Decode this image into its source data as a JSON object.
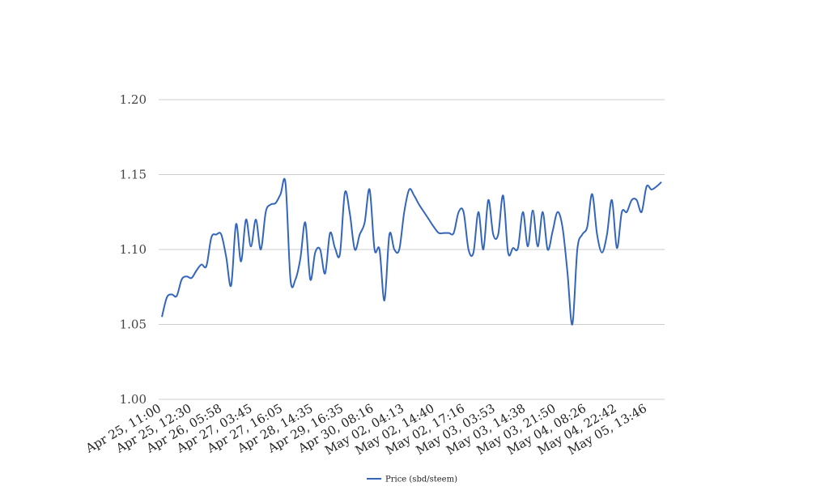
{
  "chart_data": {
    "type": "line",
    "title": "",
    "xlabel": "",
    "ylabel": "",
    "ylim": [
      1.0,
      1.2
    ],
    "grid": true,
    "legend_position": "bottom",
    "colors": {
      "series": "#3366bb",
      "grid": "#cccccc"
    },
    "y_ticks": [
      "1.00",
      "1.05",
      "1.10",
      "1.15",
      "1.20"
    ],
    "x_tick_labels": [
      "Apr 25, 11:00",
      "Apr 25, 12:30",
      "Apr 26, 05:58",
      "Apr 27, 03:45",
      "Apr 27, 16:05",
      "Apr 28, 14:35",
      "Apr 29, 16:35",
      "Apr 30, 08:16",
      "May 02, 04:13",
      "May 02, 14:40",
      "May 02, 17:16",
      "May 03, 03:53",
      "May 03, 14:38",
      "May 03, 21:50",
      "May 04, 08:26",
      "May 04, 22:42",
      "May 05, 13:46"
    ],
    "series": [
      {
        "name": "Price (sbd/steem)",
        "values": [
          1.055,
          1.068,
          1.07,
          1.069,
          1.08,
          1.082,
          1.081,
          1.086,
          1.09,
          1.089,
          1.108,
          1.11,
          1.11,
          1.095,
          1.076,
          1.117,
          1.092,
          1.12,
          1.102,
          1.12,
          1.1,
          1.125,
          1.13,
          1.131,
          1.137,
          1.144,
          1.08,
          1.08,
          1.094,
          1.118,
          1.08,
          1.098,
          1.1,
          1.084,
          1.111,
          1.101,
          1.097,
          1.138,
          1.124,
          1.1,
          1.11,
          1.118,
          1.14,
          1.1,
          1.1,
          1.066,
          1.11,
          1.1,
          1.1,
          1.125,
          1.14,
          1.136,
          1.13,
          1.125,
          1.12,
          1.115,
          1.111,
          1.111,
          1.111,
          1.111,
          1.125,
          1.125,
          1.1,
          1.098,
          1.125,
          1.1,
          1.133,
          1.11,
          1.11,
          1.136,
          1.098,
          1.101,
          1.101,
          1.125,
          1.102,
          1.126,
          1.102,
          1.125,
          1.1,
          1.112,
          1.125,
          1.115,
          1.085,
          1.05,
          1.1,
          1.11,
          1.115,
          1.137,
          1.11,
          1.098,
          1.11,
          1.133,
          1.101,
          1.125,
          1.125,
          1.133,
          1.133,
          1.125,
          1.142,
          1.14,
          1.142,
          1.145
        ]
      }
    ]
  }
}
